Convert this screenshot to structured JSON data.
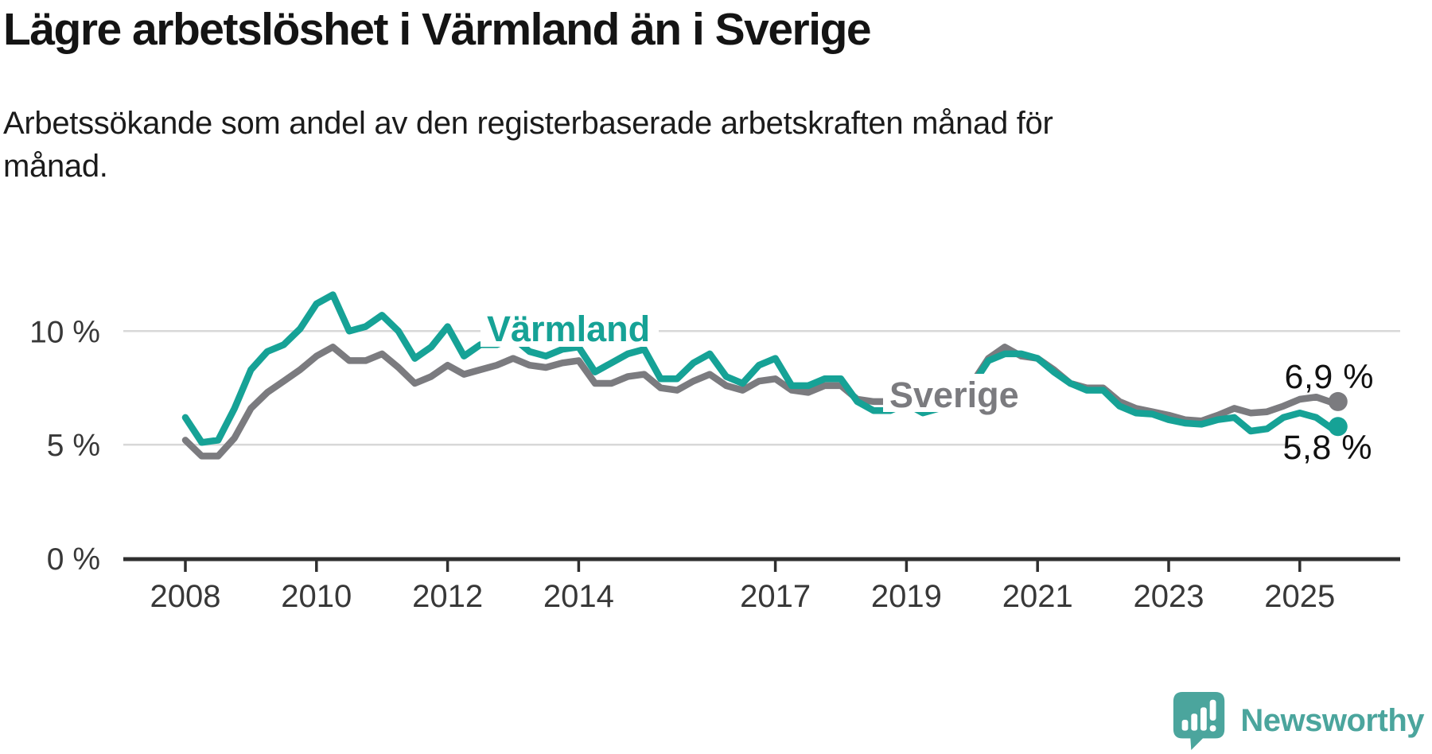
{
  "header": {
    "title": "Lägre arbetslöshet i Värmland än i Sverige",
    "subtitle_line1": "Arbetssökande som andel av den registerbaserade arbetskraften månad för",
    "subtitle_line2": "månad."
  },
  "colors": {
    "varmland": "#16a296",
    "sverige": "#7b7b7f",
    "gridline": "#d8d8d8",
    "axis": "#2f2f2f",
    "text_dark": "#141414",
    "brand_teal": "#4ba59d"
  },
  "chart_data": {
    "type": "line",
    "title": "Lägre arbetslöshet i Värmland än i Sverige",
    "subtitle": "Arbetssökande som andel av den registerbaserade arbetskraften månad för månad.",
    "unit": "%",
    "ylim": [
      0,
      12
    ],
    "x_range": [
      2008,
      2025.7
    ],
    "grid": "horizontal",
    "legend_position": "inline-on-lines",
    "y_ticks": [
      {
        "value": 0,
        "label": "0 %",
        "grid": false
      },
      {
        "value": 5,
        "label": "5 %",
        "grid": true
      },
      {
        "value": 10,
        "label": "10 %",
        "grid": true
      }
    ],
    "x_ticks": [
      2008,
      2010,
      2012,
      2014,
      2017,
      2019,
      2021,
      2023,
      2025
    ],
    "x": [
      2008,
      2008.25,
      2008.5,
      2008.75,
      2009,
      2009.25,
      2009.5,
      2009.75,
      2010,
      2010.25,
      2010.5,
      2010.75,
      2011,
      2011.25,
      2011.5,
      2011.75,
      2012,
      2012.25,
      2012.5,
      2012.75,
      2013,
      2013.25,
      2013.5,
      2013.75,
      2014,
      2014.25,
      2014.5,
      2014.75,
      2015,
      2015.25,
      2015.5,
      2015.75,
      2016,
      2016.25,
      2016.5,
      2016.75,
      2017,
      2017.25,
      2017.5,
      2017.75,
      2018,
      2018.25,
      2018.5,
      2018.75,
      2019,
      2019.25,
      2019.5,
      2019.75,
      2020,
      2020.25,
      2020.5,
      2020.75,
      2021,
      2021.25,
      2021.5,
      2021.75,
      2022,
      2022.25,
      2022.5,
      2022.75,
      2023,
      2023.25,
      2023.5,
      2023.75,
      2024,
      2024.25,
      2024.5,
      2024.75,
      2025,
      2025.25,
      2025.5,
      2025.583
    ],
    "series": [
      {
        "name": "Värmland",
        "color": "#16a296",
        "end_label": "5,8 %",
        "end_value": 5.8,
        "values": [
          6.2,
          5.1,
          5.2,
          6.6,
          8.3,
          9.1,
          9.4,
          10.1,
          11.2,
          11.6,
          10.0,
          10.2,
          10.7,
          10.0,
          8.8,
          9.3,
          10.2,
          8.9,
          9.4,
          9.4,
          9.7,
          9.1,
          8.9,
          9.2,
          9.3,
          8.2,
          8.6,
          9.0,
          9.2,
          7.9,
          7.9,
          8.6,
          9.0,
          8.0,
          7.7,
          8.5,
          8.8,
          7.6,
          7.6,
          7.9,
          7.9,
          6.9,
          6.5,
          6.5,
          6.8,
          6.4,
          6.6,
          7.1,
          7.6,
          8.7,
          9.0,
          9.0,
          8.8,
          8.2,
          7.7,
          7.4,
          7.4,
          6.7,
          6.4,
          6.35,
          6.1,
          5.95,
          5.9,
          6.1,
          6.2,
          5.6,
          5.7,
          6.2,
          6.4,
          6.2,
          5.7,
          5.8
        ]
      },
      {
        "name": "Sverige",
        "color": "#7b7b7f",
        "end_label": "6,9 %",
        "end_value": 6.9,
        "values": [
          5.2,
          4.5,
          4.5,
          5.3,
          6.6,
          7.3,
          7.8,
          8.3,
          8.9,
          9.3,
          8.7,
          8.7,
          9.0,
          8.4,
          7.7,
          8.0,
          8.5,
          8.1,
          8.3,
          8.5,
          8.8,
          8.5,
          8.4,
          8.6,
          8.7,
          7.7,
          7.7,
          8.0,
          8.1,
          7.5,
          7.4,
          7.8,
          8.1,
          7.6,
          7.4,
          7.8,
          7.9,
          7.4,
          7.3,
          7.6,
          7.6,
          7.0,
          6.9,
          6.9,
          7.0,
          6.9,
          7.0,
          7.3,
          7.7,
          8.8,
          9.3,
          8.9,
          8.8,
          8.3,
          7.7,
          7.5,
          7.5,
          6.9,
          6.6,
          6.45,
          6.3,
          6.1,
          6.05,
          6.3,
          6.6,
          6.4,
          6.45,
          6.7,
          7.0,
          7.1,
          6.85,
          6.9
        ]
      }
    ]
  },
  "footer": {
    "brand": "Newsworthy"
  }
}
